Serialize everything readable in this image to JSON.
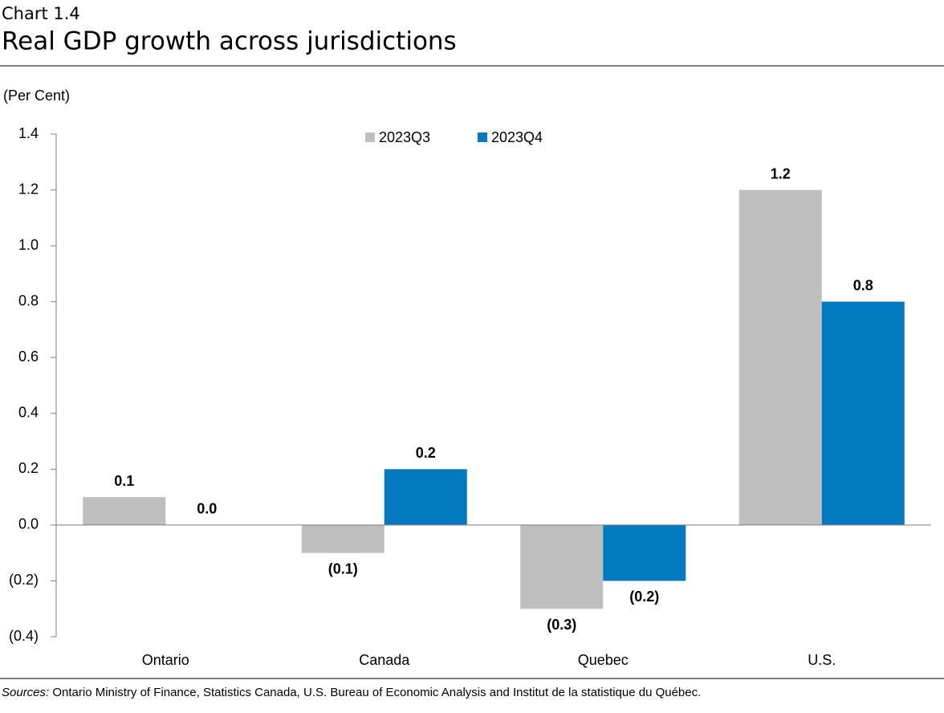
{
  "header": {
    "label": "Chart 1.4",
    "title": "Real GDP growth across jurisdictions"
  },
  "chart_data": {
    "type": "bar",
    "y_axis_label": "(Per Cent)",
    "categories": [
      "Ontario",
      "Canada",
      "Quebec",
      "U.S."
    ],
    "series": [
      {
        "name": "2023Q3",
        "color": "#bfbfbf",
        "values": [
          0.1,
          -0.1,
          -0.3,
          1.2
        ],
        "value_labels": [
          "0.1",
          "(0.1)",
          "(0.3)",
          "1.2"
        ]
      },
      {
        "name": "2023Q4",
        "color": "#0579c0",
        "values": [
          0,
          0.2,
          -0.2,
          0.8
        ],
        "value_labels": [
          "0.0",
          "0.2",
          "(0.2)",
          "0.8"
        ]
      }
    ],
    "ylim": [
      -0.4,
      1.4
    ],
    "yticks": [
      {
        "value": -0.4,
        "label": "(0.4)"
      },
      {
        "value": -0.2,
        "label": "(0.2)"
      },
      {
        "value": 0,
        "label": "0.0"
      },
      0.2,
      0.4,
      0.6,
      0.8,
      {
        "value": 1,
        "label": "1.0"
      },
      1.2,
      1.4
    ],
    "grid": false,
    "legend": "top"
  },
  "footer": {
    "sources_label": "Sources:",
    "sources_text": "Ontario Ministry of Finance, Statistics Canada, U.S. Bureau of Economic Analysis and Institut de la statistique du Québec."
  }
}
